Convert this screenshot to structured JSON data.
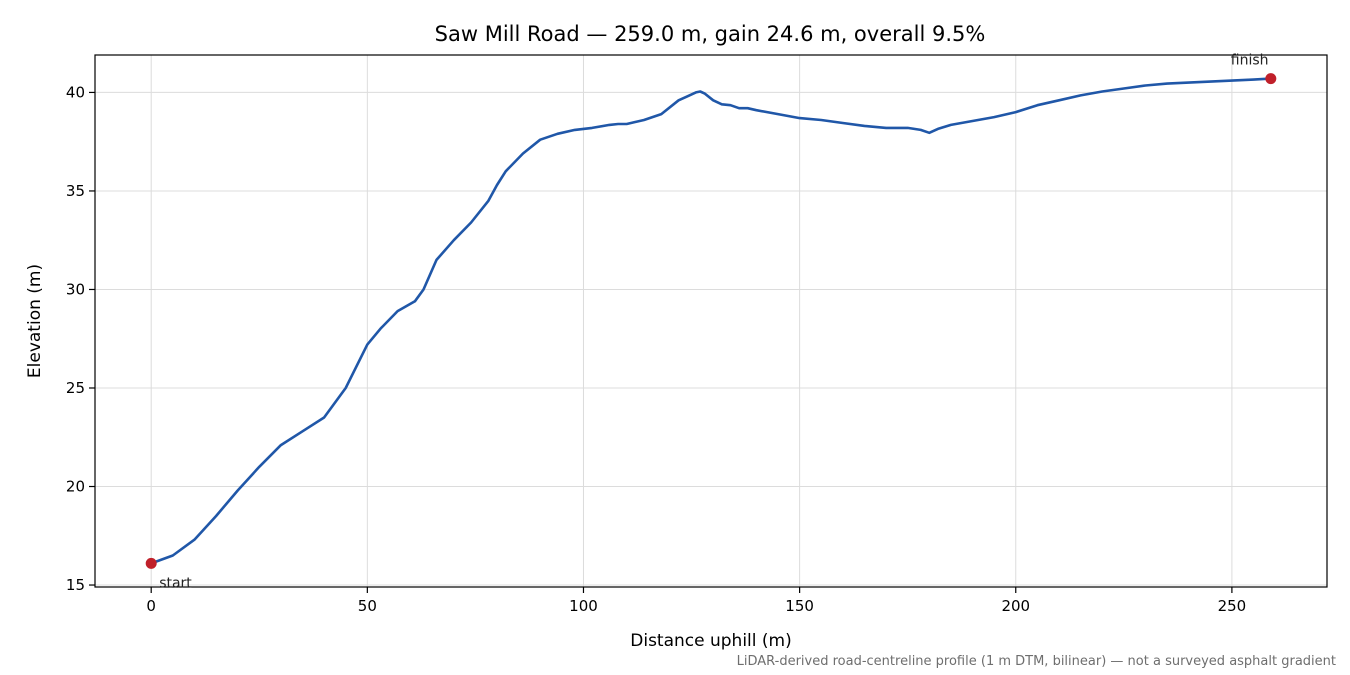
{
  "chart_data": {
    "type": "line",
    "title": "Saw Mill Road — 259.0 m, gain 24.6 m, overall 9.5%",
    "xlabel": "Distance uphill (m)",
    "ylabel": "Elevation (m)",
    "xlim": [
      -13,
      272
    ],
    "ylim": [
      14.9,
      41.9
    ],
    "xticks": [
      0,
      50,
      100,
      150,
      200,
      250
    ],
    "yticks": [
      15,
      20,
      25,
      30,
      35,
      40
    ],
    "grid": true,
    "footnote": "LiDAR-derived road-centreline profile (1 m DTM, bilinear) — not a surveyed asphalt gradient",
    "colors": {
      "line": "#2057a8",
      "marker": "#c0202a",
      "grid": "#dcdcdc"
    },
    "series": [
      {
        "x": [
          0,
          5,
          10,
          15,
          20,
          25,
          30,
          35,
          40,
          45,
          50,
          53,
          57,
          61,
          63,
          66,
          70,
          74,
          78,
          80,
          82,
          86,
          90,
          94,
          98,
          102,
          106,
          108,
          110,
          114,
          118,
          122,
          124,
          126,
          127,
          128,
          130,
          132,
          134,
          136,
          138,
          140,
          145,
          150,
          155,
          160,
          165,
          170,
          175,
          178,
          180,
          182,
          185,
          190,
          195,
          200,
          205,
          210,
          215,
          220,
          225,
          230,
          235,
          240,
          245,
          250,
          255,
          259
        ],
        "y": [
          16.1,
          16.5,
          17.3,
          18.5,
          19.8,
          21.0,
          22.1,
          22.8,
          23.5,
          25.0,
          27.2,
          28.0,
          28.9,
          29.4,
          30.0,
          31.5,
          32.5,
          33.4,
          34.5,
          35.3,
          36.0,
          36.9,
          37.6,
          37.9,
          38.1,
          38.2,
          38.35,
          38.4,
          38.4,
          38.6,
          38.9,
          39.6,
          39.8,
          40.0,
          40.05,
          39.95,
          39.6,
          39.4,
          39.35,
          39.2,
          39.2,
          39.1,
          38.9,
          38.7,
          38.6,
          38.45,
          38.3,
          38.2,
          38.2,
          38.1,
          37.95,
          38.15,
          38.35,
          38.55,
          38.75,
          39.0,
          39.35,
          39.6,
          39.85,
          40.05,
          40.2,
          40.35,
          40.45,
          40.5,
          40.55,
          40.6,
          40.65,
          40.7
        ],
        "annotations": [
          {
            "label": "start",
            "x": 0,
            "y": 16.1
          },
          {
            "label": "finish",
            "x": 259,
            "y": 40.7
          }
        ]
      }
    ]
  }
}
